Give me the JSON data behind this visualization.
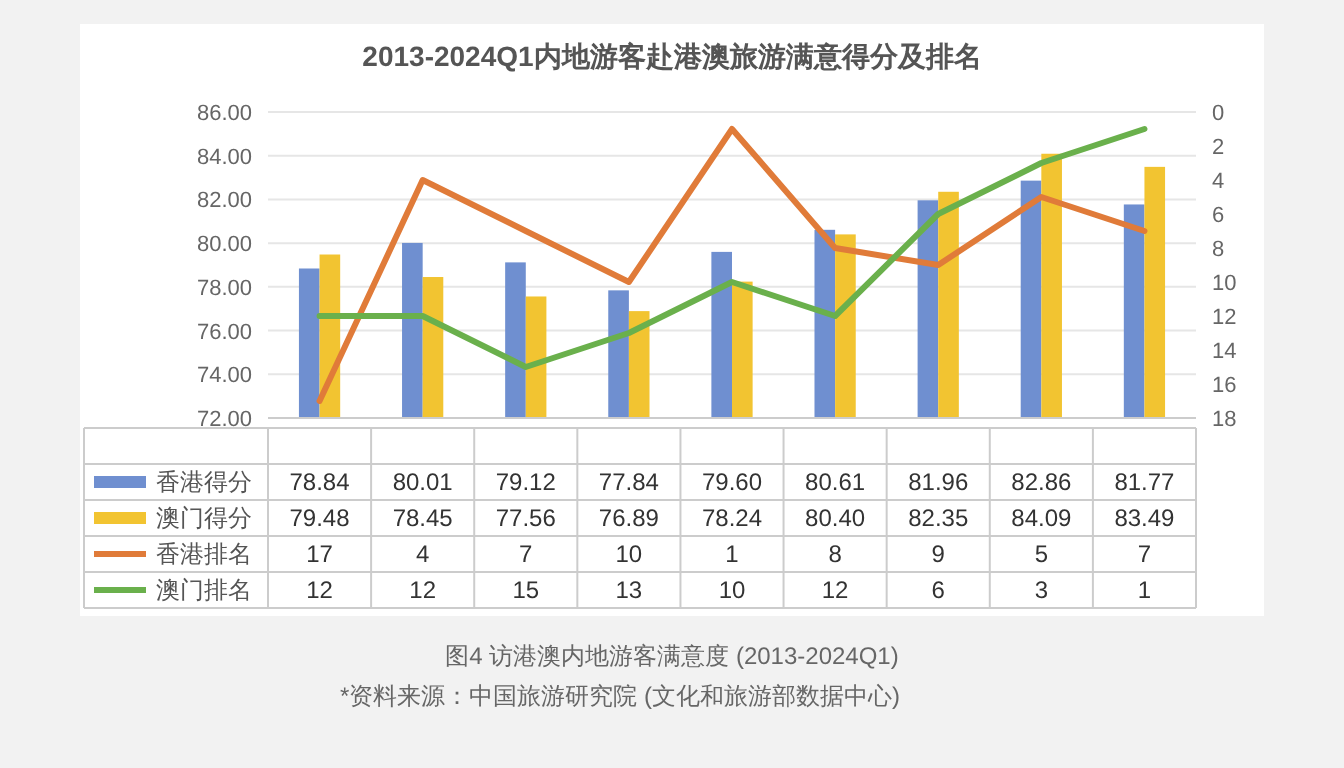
{
  "chart_data": {
    "type": "bar",
    "title": "2013-2024Q1内地游客赴港澳旅游满意得分及排名",
    "categories": [
      null,
      null,
      null,
      null,
      null,
      null,
      null,
      null,
      null
    ],
    "series": [
      {
        "name": "香港得分",
        "color": "#6f8fd0",
        "values": [
          78.84,
          80.01,
          79.12,
          77.84,
          79.6,
          80.61,
          81.96,
          82.86,
          81.77
        ],
        "value_labels": [
          "78.84",
          "80.01",
          "79.12",
          "77.84",
          "79.60",
          "80.61",
          "81.96",
          "82.86",
          "81.77"
        ]
      },
      {
        "name": "澳门得分",
        "color": "#f2c431",
        "values": [
          79.48,
          78.45,
          77.56,
          76.89,
          78.24,
          80.4,
          82.35,
          84.09,
          83.49
        ],
        "value_labels": [
          "79.48",
          "78.45",
          "77.56",
          "76.89",
          "78.24",
          "80.40",
          "82.35",
          "84.09",
          "83.49"
        ]
      },
      {
        "name": "香港排名",
        "type": "line",
        "axis": "y2",
        "color": "#e07b39",
        "values": [
          17,
          4,
          7,
          10,
          1,
          8,
          9,
          5,
          7
        ],
        "value_labels": [
          "17",
          "4",
          "7",
          "10",
          "1",
          "8",
          "9",
          "5",
          "7"
        ]
      },
      {
        "name": "澳门排名",
        "type": "line",
        "axis": "y2",
        "color": "#6ab04c",
        "values": [
          12,
          12,
          15,
          13,
          10,
          12,
          6,
          3,
          1
        ],
        "value_labels": [
          "12",
          "12",
          "15",
          "13",
          "10",
          "12",
          "6",
          "3",
          "1"
        ]
      }
    ],
    "ylim": [
      72,
      86
    ],
    "yticks": [
      {
        "value": 72,
        "label": "72.00"
      },
      {
        "value": 74,
        "label": "74.00"
      },
      {
        "value": 76,
        "label": "76.00"
      },
      {
        "value": 78,
        "label": "78.00"
      },
      {
        "value": 80,
        "label": "80.00"
      },
      {
        "value": 82,
        "label": "82.00"
      },
      {
        "value": 84,
        "label": "84.00"
      },
      {
        "value": 86,
        "label": "86.00"
      }
    ],
    "y2lim": [
      18,
      0
    ],
    "y2ticks": [
      0,
      2,
      4,
      6,
      8,
      10,
      12,
      14,
      16,
      18
    ],
    "grid": "y",
    "legend": "bottom",
    "marker": "none",
    "line_style": "solid",
    "annotations": [
      "图4 访港澳内地游客满意度 (2013-2024Q1)",
      "*资料来源：中国旅游研究院 (文化和旅游部数据中心)"
    ]
  }
}
